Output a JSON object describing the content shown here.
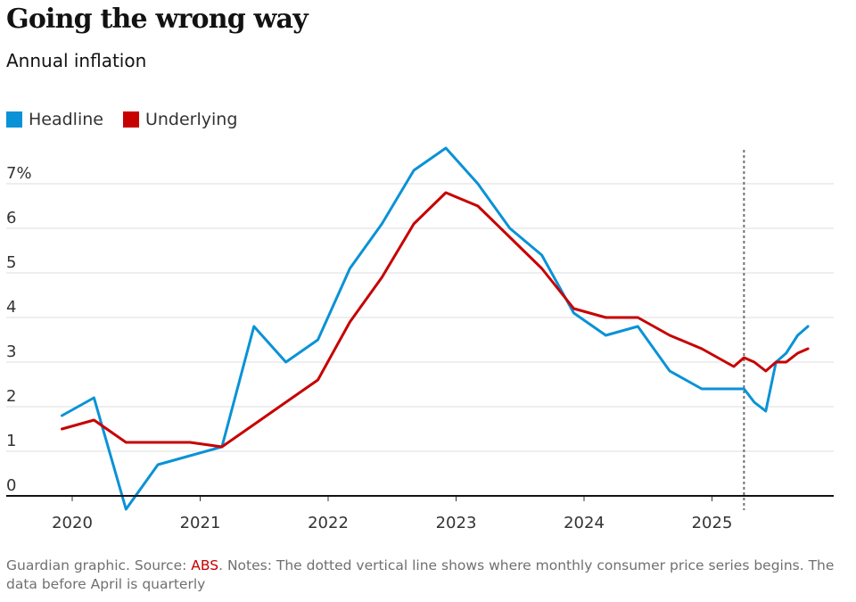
{
  "title": "Going the wrong way",
  "subtitle": "Annual inflation",
  "legend": [
    {
      "name": "Headline",
      "color": "#0a92d6"
    },
    {
      "name": "Underlying",
      "color": "#c70000"
    }
  ],
  "footer": {
    "prefix": "Guardian graphic. Source: ",
    "source": "ABS",
    "notes": ". Notes: The dotted vertical line shows where monthly consumer price series begins. The data before April is quarterly"
  },
  "chart_data": {
    "type": "line",
    "y_ticks": [
      "0",
      "1",
      "2",
      "3",
      "4",
      "5",
      "6",
      "7%"
    ],
    "x_ticks": [
      "2020",
      "2021",
      "2022",
      "2023",
      "2024",
      "2025"
    ],
    "ylim": [
      0,
      7.5
    ],
    "xlim": [
      2019.5,
      2026.0
    ],
    "grid": true,
    "legend_position": "top-left",
    "reference_line": {
      "x": 2025.25,
      "style": "dotted"
    },
    "series": [
      {
        "name": "Headline",
        "color": "#0a92d6",
        "points": [
          [
            2019.92,
            1.8
          ],
          [
            2020.17,
            2.2
          ],
          [
            2020.42,
            -0.3
          ],
          [
            2020.67,
            0.7
          ],
          [
            2020.92,
            0.9
          ],
          [
            2021.17,
            1.1
          ],
          [
            2021.42,
            3.8
          ],
          [
            2021.67,
            3.0
          ],
          [
            2021.92,
            3.5
          ],
          [
            2022.17,
            5.1
          ],
          [
            2022.42,
            6.1
          ],
          [
            2022.67,
            7.3
          ],
          [
            2022.92,
            7.8
          ],
          [
            2023.17,
            7.0
          ],
          [
            2023.42,
            6.0
          ],
          [
            2023.67,
            5.4
          ],
          [
            2023.92,
            4.1
          ],
          [
            2024.17,
            3.6
          ],
          [
            2024.42,
            3.8
          ],
          [
            2024.67,
            2.8
          ],
          [
            2024.92,
            2.4
          ],
          [
            2025.17,
            2.4
          ],
          [
            2025.25,
            2.4
          ],
          [
            2025.33,
            2.1
          ],
          [
            2025.42,
            1.9
          ],
          [
            2025.5,
            3.0
          ],
          [
            2025.58,
            3.2
          ],
          [
            2025.67,
            3.6
          ],
          [
            2025.75,
            3.8
          ]
        ]
      },
      {
        "name": "Underlying",
        "color": "#c70000",
        "points": [
          [
            2019.92,
            1.5
          ],
          [
            2020.17,
            1.7
          ],
          [
            2020.42,
            1.2
          ],
          [
            2020.67,
            1.2
          ],
          [
            2020.92,
            1.2
          ],
          [
            2021.17,
            1.1
          ],
          [
            2021.42,
            1.6
          ],
          [
            2021.67,
            2.1
          ],
          [
            2021.92,
            2.6
          ],
          [
            2022.17,
            3.9
          ],
          [
            2022.42,
            4.9
          ],
          [
            2022.67,
            6.1
          ],
          [
            2022.92,
            6.8
          ],
          [
            2023.17,
            6.5
          ],
          [
            2023.42,
            5.8
          ],
          [
            2023.67,
            5.1
          ],
          [
            2023.92,
            4.2
          ],
          [
            2024.17,
            4.0
          ],
          [
            2024.42,
            4.0
          ],
          [
            2024.67,
            3.6
          ],
          [
            2024.92,
            3.3
          ],
          [
            2025.17,
            2.9
          ],
          [
            2025.25,
            3.1
          ],
          [
            2025.33,
            3.0
          ],
          [
            2025.42,
            2.8
          ],
          [
            2025.5,
            3.0
          ],
          [
            2025.58,
            3.0
          ],
          [
            2025.67,
            3.2
          ],
          [
            2025.75,
            3.3
          ]
        ]
      }
    ]
  }
}
